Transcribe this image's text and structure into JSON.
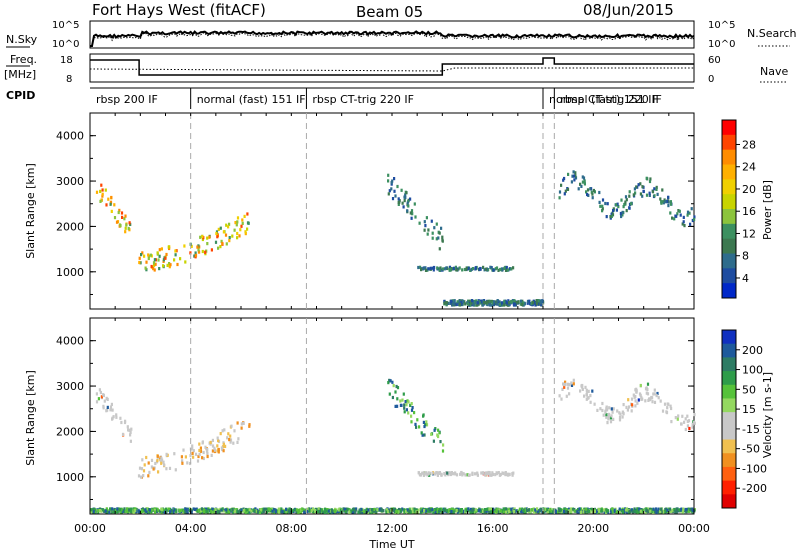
{
  "header": {
    "title": "Fort Hays West (fitACF)",
    "beam": "Beam 05",
    "date": "08/Jun/2015"
  },
  "labels": {
    "nsky": "N.Sky",
    "nsearch": "N.Search",
    "freq": "Freq.",
    "mhz": "[MHz]",
    "nave": "Nave",
    "cpid": "CPID",
    "x_axis": "Time UT"
  },
  "top_axis_ticks": {
    "nsky_left": [
      "10^5",
      "10^0"
    ],
    "nsky_right": [
      "10^5",
      "10^0"
    ],
    "freq_left": [
      "18",
      "8"
    ],
    "nave_right": [
      "60",
      "0"
    ]
  },
  "cpid_segments": [
    {
      "label": "rbsp 200 IF",
      "start_h": 0.0
    },
    {
      "label": "normal (fast) 151 IF",
      "start_h": 4.0
    },
    {
      "label": "rbsp CT-trig 220 IF",
      "start_h": 8.6
    },
    {
      "label": "normal (fast) 151 IF",
      "start_h": 18.0
    },
    {
      "label": "rbsp CT-trig 220 IF",
      "start_h": 18.45
    }
  ],
  "cpid_dividers_h": [
    4.0,
    8.6,
    18.0,
    18.45
  ],
  "colorbars": {
    "power": {
      "label": "Power [dB]",
      "ticks": [
        "28",
        "24",
        "20",
        "16",
        "12",
        "8",
        "4"
      ],
      "colors": [
        "#ff0000",
        "#ff4500",
        "#ff8c00",
        "#ffb000",
        "#f0d000",
        "#c8d400",
        "#8cc43c",
        "#3c9060",
        "#3c7850",
        "#2e6c8c",
        "#1e4ca0",
        "#0028c8"
      ]
    },
    "velocity": {
      "label": "Velocity [m s-1]",
      "ticks": [
        "200",
        "100",
        "50",
        "15",
        "-15",
        "-50",
        "-100",
        "-200"
      ],
      "colors": [
        "#1030c0",
        "#1e5a9c",
        "#2e7c64",
        "#2e9c4a",
        "#56c23a",
        "#94d860",
        "#c8c8c8",
        "#c8c8c8",
        "#f0c050",
        "#f09020",
        "#ff6010",
        "#ff2000",
        "#e00000"
      ]
    }
  },
  "chart_data": [
    {
      "type": "heatmap",
      "name": "power",
      "xlabel": "",
      "ylabel": "Slant Range [km]",
      "xlim": [
        0,
        24
      ],
      "ylim": [
        180,
        4500
      ],
      "yticks": [
        "1000",
        "2000",
        "3000",
        "4000"
      ],
      "features": [
        {
          "t0": 0.2,
          "t1": 1.6,
          "r0": 2100,
          "r1": 3200,
          "level": "high"
        },
        {
          "t0": 1.9,
          "t1": 6.3,
          "r0": 1100,
          "r1": 2400,
          "level": "high"
        },
        {
          "t0": 11.8,
          "t1": 14.0,
          "r0": 1700,
          "r1": 3100,
          "level": "low"
        },
        {
          "t0": 13.0,
          "t1": 16.8,
          "r0": 1000,
          "r1": 1200,
          "level": "low"
        },
        {
          "t0": 18.6,
          "t1": 24.0,
          "r0": 2200,
          "r1": 3300,
          "level": "low"
        },
        {
          "t0": 14.0,
          "t1": 18.0,
          "r0": 200,
          "r1": 500,
          "level": "low"
        }
      ]
    },
    {
      "type": "heatmap",
      "name": "velocity",
      "xlabel": "Time UT",
      "ylabel": "Slant Range [km]",
      "xlim": [
        0,
        24
      ],
      "ylim": [
        180,
        4500
      ],
      "yticks": [
        "1000",
        "2000",
        "3000",
        "4000"
      ],
      "xticks": [
        "00:00",
        "04:00",
        "08:00",
        "12:00",
        "16:00",
        "20:00",
        "00:00"
      ],
      "features": [
        {
          "t0": 0.2,
          "t1": 1.6,
          "r0": 2100,
          "r1": 3200,
          "level": "neutral"
        },
        {
          "t0": 1.9,
          "t1": 6.3,
          "r0": 1100,
          "r1": 2400,
          "level": "neutral-neg"
        },
        {
          "t0": 11.8,
          "t1": 14.0,
          "r0": 1700,
          "r1": 3100,
          "level": "pos"
        },
        {
          "t0": 13.0,
          "t1": 16.8,
          "r0": 1000,
          "r1": 1200,
          "level": "neutral"
        },
        {
          "t0": 18.6,
          "t1": 24.0,
          "r0": 2200,
          "r1": 3300,
          "level": "neutral"
        },
        {
          "t0": 0.0,
          "t1": 24.0,
          "r0": 180,
          "r1": 400,
          "level": "pos"
        }
      ]
    }
  ]
}
